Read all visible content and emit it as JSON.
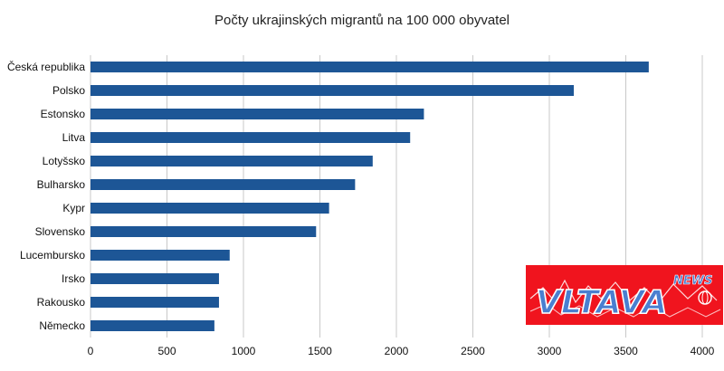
{
  "chart_data": {
    "type": "bar",
    "orientation": "horizontal",
    "title": "Počty ukrajinských migrantů na 100 000 obyvatel",
    "xlabel": "",
    "ylabel": "",
    "categories": [
      "Česká republika",
      "Polsko",
      "Estonsko",
      "Litva",
      "Lotyšsko",
      "Bulharsko",
      "Kypr",
      "Slovensko",
      "Lucembursko",
      "Irsko",
      "Rakousko",
      "Německo"
    ],
    "values": [
      3650,
      3160,
      2180,
      2090,
      1845,
      1730,
      1560,
      1475,
      910,
      840,
      840,
      810
    ],
    "xlim": [
      0,
      4000
    ],
    "xticks": [
      0,
      500,
      1000,
      1500,
      2000,
      2500,
      3000,
      3500,
      4000
    ],
    "grid": "vertical",
    "legend": "none",
    "bar_color": "#1d5696",
    "grid_color": "#c8c8c8"
  },
  "logo": {
    "main_text": "VLTAVA",
    "sub_text": "NEWS",
    "bg_color": "#f0141e",
    "text_color": "#4a7fd0"
  }
}
